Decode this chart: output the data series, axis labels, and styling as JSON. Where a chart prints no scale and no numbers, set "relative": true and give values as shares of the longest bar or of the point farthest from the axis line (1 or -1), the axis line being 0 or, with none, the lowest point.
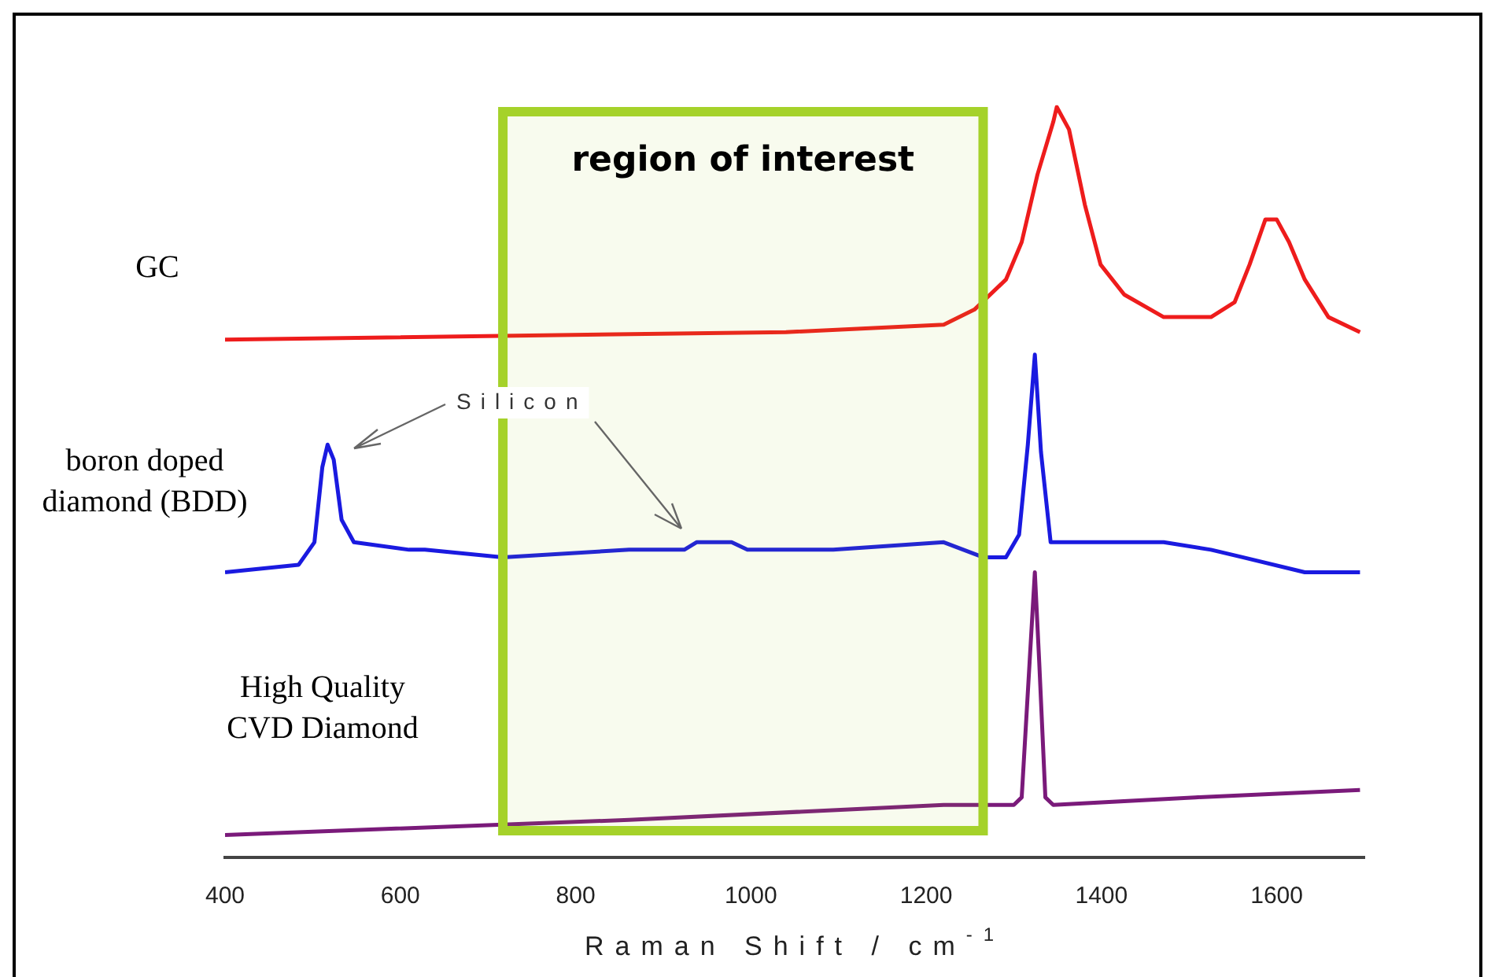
{
  "chart_data": {
    "type": "line",
    "relative": true,
    "xlabel": "Raman Shift / cm$^{-1}$",
    "xlim": [
      400,
      1700
    ],
    "xticks": [
      400,
      600,
      800,
      1000,
      1200,
      1400,
      1600
    ],
    "legend": false,
    "grid": false,
    "marker": "none",
    "series": [
      {
        "name": "GC",
        "color": "#ee1c1c",
        "x": [
          400,
          1040,
          1220,
          1255,
          1291,
          1309,
          1327,
          1345,
          1349,
          1363,
          1381,
          1399,
          1426,
          1471,
          1525,
          1552,
          1569,
          1587,
          1600,
          1614,
          1632,
          1659,
          1695
        ],
        "values": [
          0.69,
          0.7,
          0.71,
          0.73,
          0.77,
          0.82,
          0.91,
          0.98,
          1,
          0.97,
          0.87,
          0.79,
          0.75,
          0.72,
          0.72,
          0.74,
          0.79,
          0.85,
          0.85,
          0.82,
          0.77,
          0.72,
          0.7
        ]
      },
      {
        "name": "boron doped diamond (BDD)",
        "color": "#1a1ae0",
        "x": [
          400,
          484,
          502,
          511,
          517,
          524,
          533,
          547,
          610,
          617,
          628,
          717,
          861,
          924,
          938,
          978,
          996,
          1094,
          1220,
          1265,
          1291,
          1306,
          1316,
          1324,
          1331,
          1342,
          1381,
          1471,
          1525,
          1561,
          1632,
          1695
        ],
        "values": [
          0.38,
          0.39,
          0.42,
          0.52,
          0.55,
          0.53,
          0.45,
          0.42,
          0.41,
          0.41,
          0.41,
          0.4,
          0.41,
          0.41,
          0.42,
          0.42,
          0.41,
          0.41,
          0.42,
          0.4,
          0.4,
          0.43,
          0.55,
          0.67,
          0.54,
          0.42,
          0.42,
          0.42,
          0.41,
          0.4,
          0.38,
          0.38
        ]
      },
      {
        "name": "High Quality CVD Diamond",
        "color": "#7a1a7a",
        "x": [
          400,
          861,
          1220,
          1300,
          1309,
          1318,
          1324,
          1329,
          1336,
          1345,
          1507,
          1695
        ],
        "values": [
          0.03,
          0.05,
          0.07,
          0.07,
          0.08,
          0.26,
          0.38,
          0.26,
          0.08,
          0.07,
          0.08,
          0.09
        ]
      }
    ],
    "bands": [
      {
        "axis": "x",
        "from": 717,
        "to": 1265,
        "label": "region of interest",
        "color": "#a5d22a"
      }
    ],
    "annotations": [
      "Silicon"
    ]
  }
}
